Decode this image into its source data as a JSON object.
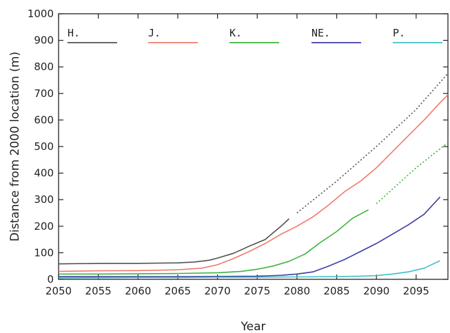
{
  "chart_data": {
    "type": "line",
    "title": "",
    "xlabel": "Year",
    "ylabel": "Distance from 2000 location (m)",
    "xlim": [
      2050,
      2099
    ],
    "ylim": [
      0,
      1000
    ],
    "x_ticks": [
      2050,
      2055,
      2060,
      2065,
      2070,
      2075,
      2080,
      2085,
      2090,
      2095
    ],
    "y_ticks": [
      0,
      100,
      200,
      300,
      400,
      500,
      600,
      700,
      800,
      900,
      1000
    ],
    "grid": false,
    "legend_placement": "top",
    "series": [
      {
        "name": "H.",
        "color": "#505050",
        "x": [
          2050,
          2055,
          2060,
          2065,
          2067,
          2069,
          2070,
          2072,
          2074,
          2076,
          2077,
          2078,
          2079
        ],
        "y": [
          58,
          60,
          60,
          62,
          65,
          72,
          80,
          98,
          125,
          150,
          175,
          200,
          228
        ],
        "projection": {
          "x": [
            2080,
            2085,
            2090,
            2095,
            2099
          ],
          "y": [
            250,
            370,
            500,
            640,
            775
          ]
        }
      },
      {
        "name": "J.",
        "color": "#f07a6a",
        "x": [
          2050,
          2055,
          2060,
          2065,
          2068,
          2070,
          2072,
          2074,
          2076,
          2078,
          2080,
          2082,
          2084,
          2086,
          2088,
          2090,
          2092,
          2094,
          2096,
          2098,
          2099
        ],
        "y": [
          30,
          32,
          33,
          36,
          42,
          55,
          78,
          105,
          135,
          170,
          200,
          235,
          280,
          330,
          370,
          420,
          480,
          540,
          600,
          665,
          695
        ],
        "projection": null
      },
      {
        "name": "K.",
        "color": "#3cb33c",
        "x": [
          2050,
          2055,
          2060,
          2065,
          2070,
          2073,
          2075,
          2077,
          2079,
          2081,
          2083,
          2085,
          2087,
          2089
        ],
        "y": [
          20,
          20,
          21,
          22,
          25,
          30,
          38,
          50,
          68,
          95,
          140,
          180,
          230,
          262
        ],
        "projection": {
          "x": [
            2090,
            2095,
            2099
          ],
          "y": [
            285,
            420,
            515
          ]
        }
      },
      {
        "name": "NE.",
        "color": "#3c3ca0",
        "x": [
          2050,
          2055,
          2060,
          2065,
          2070,
          2075,
          2078,
          2080,
          2082,
          2084,
          2086,
          2088,
          2090,
          2092,
          2094,
          2096,
          2098
        ],
        "y": [
          10,
          10,
          10,
          10,
          11,
          12,
          15,
          20,
          28,
          50,
          75,
          105,
          135,
          170,
          205,
          245,
          310
        ],
        "projection": null
      },
      {
        "name": "P.",
        "color": "#3cc0c8",
        "x": [
          2050,
          2055,
          2060,
          2065,
          2070,
          2075,
          2080,
          2085,
          2088,
          2090,
          2092,
          2094,
          2096,
          2098
        ],
        "y": [
          5,
          6,
          7,
          7,
          8,
          8,
          9,
          10,
          12,
          14,
          20,
          28,
          42,
          70
        ],
        "projection": null
      }
    ]
  }
}
